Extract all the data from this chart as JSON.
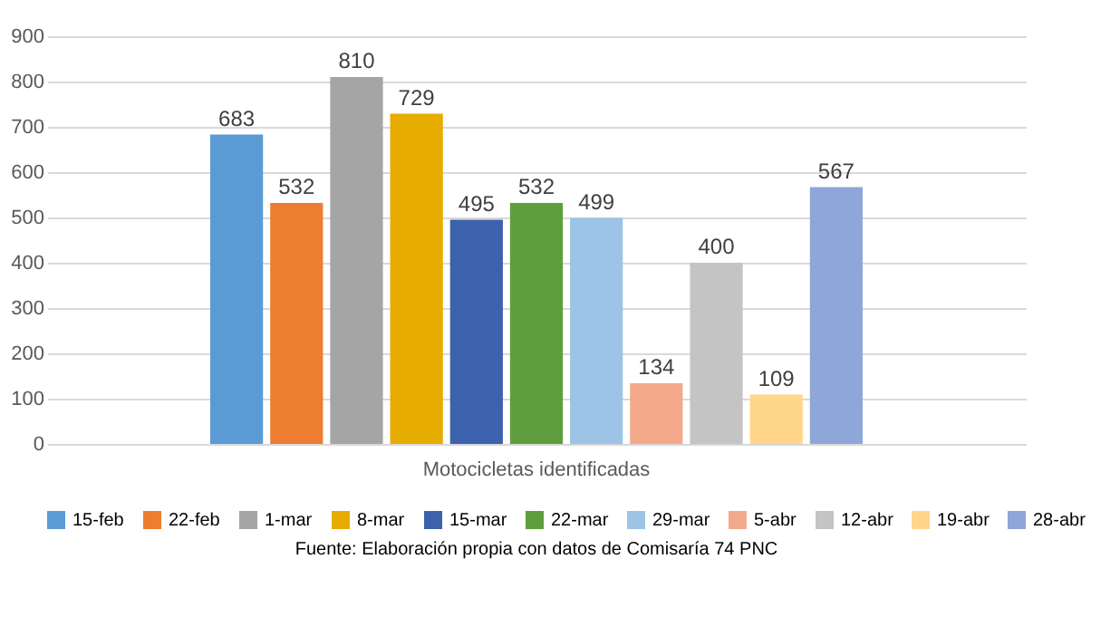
{
  "chart_data": {
    "type": "bar",
    "categories": [
      "Motocicletas identificadas"
    ],
    "series": [
      {
        "name": "15-feb",
        "color": "#5b9bd5",
        "values": [
          683
        ]
      },
      {
        "name": "22-feb",
        "color": "#ed7d31",
        "values": [
          532
        ]
      },
      {
        "name": "1-mar",
        "color": "#a5a5a5",
        "values": [
          810
        ]
      },
      {
        "name": "8-mar",
        "color": "#e6ac00",
        "values": [
          729
        ]
      },
      {
        "name": "15-mar",
        "color": "#3d62ad",
        "values": [
          495
        ]
      },
      {
        "name": "22-mar",
        "color": "#5e9e3c",
        "values": [
          532
        ]
      },
      {
        "name": "29-mar",
        "color": "#9dc3e6",
        "values": [
          499
        ]
      },
      {
        "name": "5-abr",
        "color": "#f4a98a",
        "values": [
          134
        ]
      },
      {
        "name": "12-abr",
        "color": "#c4c4c4",
        "values": [
          400
        ]
      },
      {
        "name": "19-abr",
        "color": "#ffd68a",
        "values": [
          109
        ]
      },
      {
        "name": "28-abr",
        "color": "#8fa6d8",
        "values": [
          567
        ]
      }
    ],
    "ylim": [
      0,
      900
    ],
    "yticks": [
      0,
      100,
      200,
      300,
      400,
      500,
      600,
      700,
      800,
      900
    ],
    "grid": "y",
    "legend": "bottom",
    "data_labels": true,
    "annotations": [
      "Fuente: Elaboración propia con datos de Comisaría 74 PNC"
    ]
  }
}
